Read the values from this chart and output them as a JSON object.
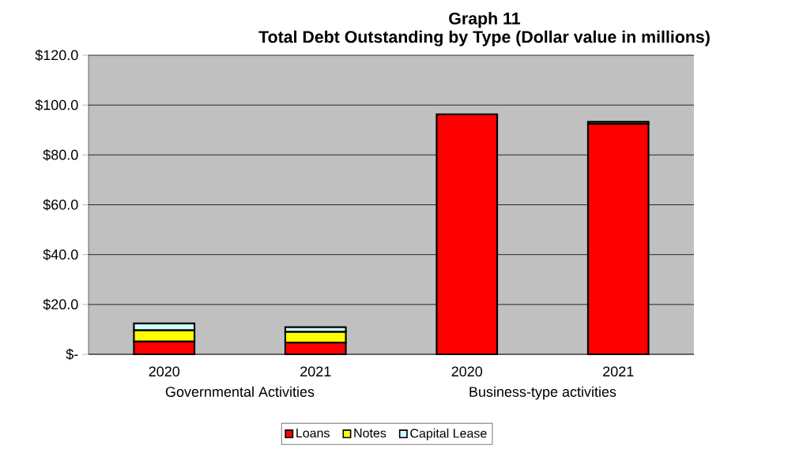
{
  "chart_data": {
    "type": "bar",
    "stacked": true,
    "title": "Graph 11",
    "subtitle": "Total Debt Outstanding by Type (Dollar value in millions)",
    "categories": [
      "2020",
      "2021",
      "2020",
      "2021"
    ],
    "series": [
      {
        "name": "Loans",
        "color": "#ff0000",
        "values": [
          5.1,
          4.7,
          96.3,
          92.5
        ]
      },
      {
        "name": "Notes",
        "color": "#ffff00",
        "values": [
          4.5,
          4.3,
          0,
          0.8
        ]
      },
      {
        "name": "Capital Lease",
        "color": "#ccffff",
        "values": [
          2.8,
          1.9,
          0,
          0
        ]
      }
    ],
    "annotations": [
      "Governmental Activities",
      "Business-type activities"
    ],
    "ylim": [
      0,
      120
    ],
    "yticks": [
      {
        "value": 0,
        "label": "$-"
      },
      {
        "value": 20,
        "label": "$20.0"
      },
      {
        "value": 40,
        "label": "$40.0"
      },
      {
        "value": 60,
        "label": "$60.0"
      },
      {
        "value": 80,
        "label": "$80.0"
      },
      {
        "value": 100,
        "label": "$100.0"
      },
      {
        "value": 120,
        "label": "$120.0"
      }
    ],
    "grid": "y",
    "legend": "bottom"
  }
}
